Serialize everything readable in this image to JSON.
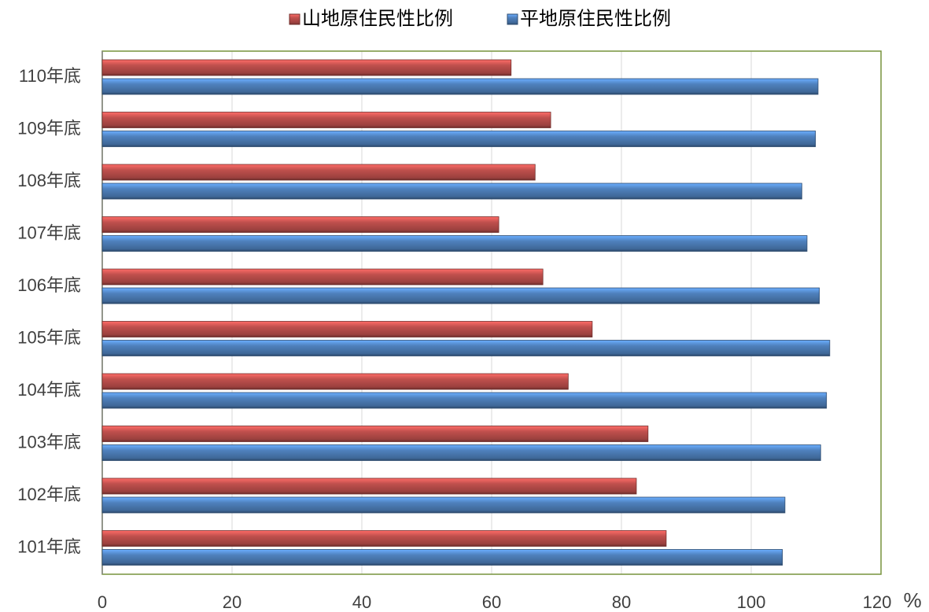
{
  "chart_data": {
    "type": "hbar",
    "categories": [
      "101年底",
      "102年底",
      "103年底",
      "104年底",
      "105年底",
      "106年底",
      "107年底",
      "108年底",
      "109年底",
      "110年底"
    ],
    "series": [
      {
        "name": "山地原住民性比例",
        "color": "#c0504d",
        "values": [
          86.9,
          82.3,
          84.1,
          71.8,
          75.5,
          67.9,
          61.1,
          66.7,
          69.1,
          63.0
        ]
      },
      {
        "name": "平地原住民性比例",
        "color": "#4f81bd",
        "values": [
          104.8,
          105.2,
          110.7,
          111.6,
          112.1,
          110.5,
          108.6,
          107.8,
          109.9,
          110.3
        ]
      }
    ],
    "xlim": [
      0,
      120
    ],
    "xticks": [
      0,
      20,
      40,
      60,
      80,
      100,
      120
    ],
    "x_unit": "%",
    "grid": true,
    "legend": "top"
  }
}
